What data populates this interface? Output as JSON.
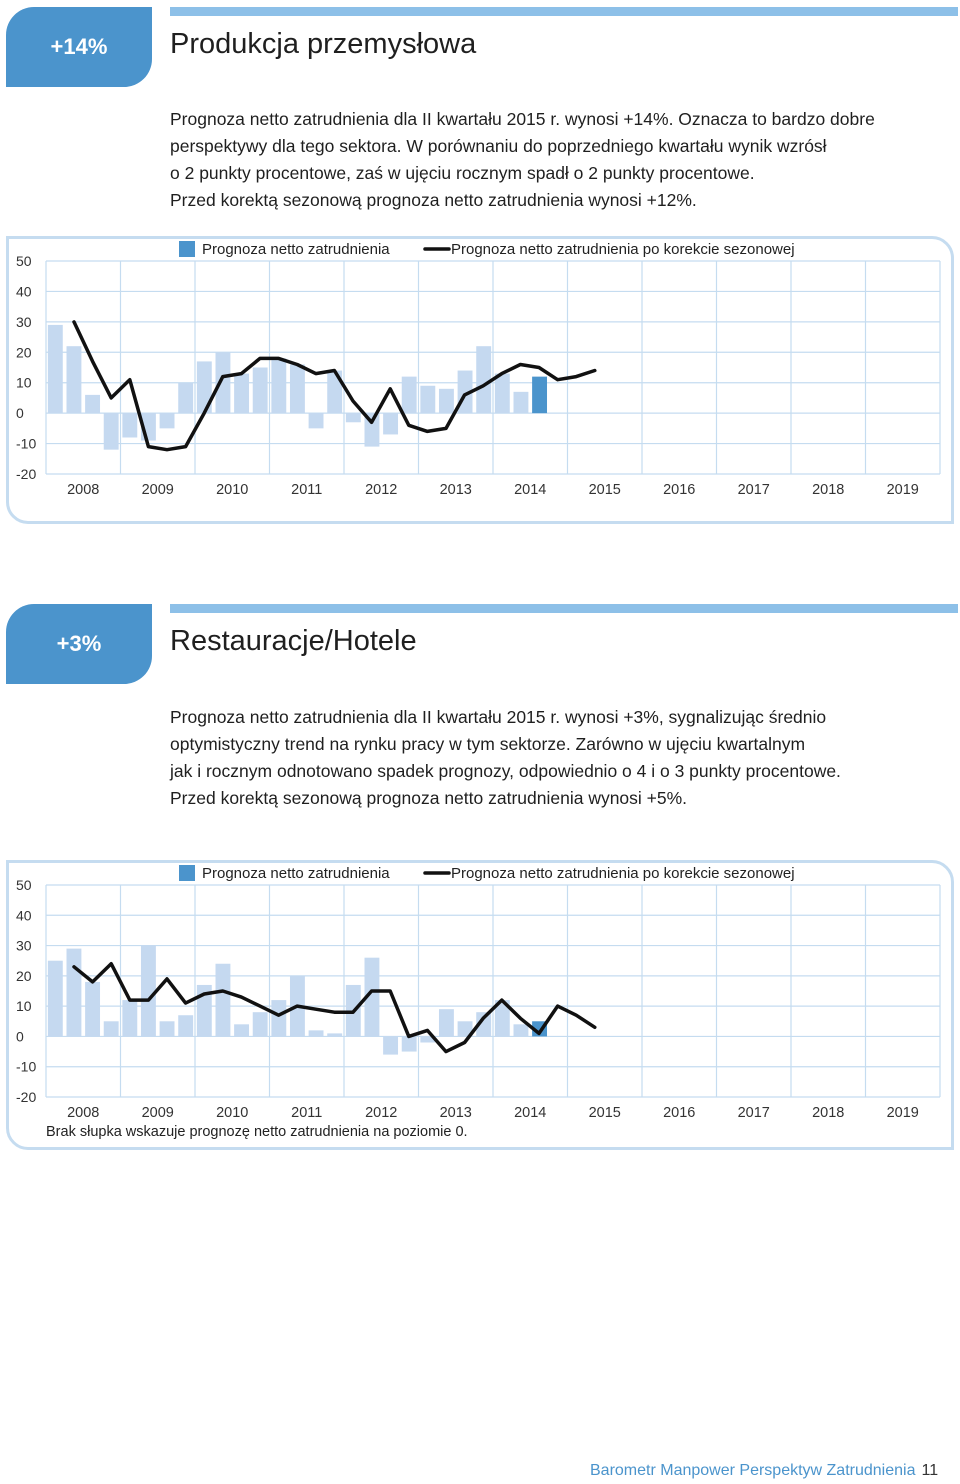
{
  "sections": [
    {
      "badge": "+14%",
      "title": "Produkcja przemysłowa",
      "description": [
        "Prognoza netto zatrudnienia dla II kwartału 2015 r. wynosi +14%. Oznacza to bardzo dobre",
        "perspektywy dla tego sektora. W porównaniu do poprzedniego kwartału wynik wzrósł",
        "o 2 punkty procentowe, zaś w ujęciu rocznym spadł o 2 punkty procentowe.",
        "Przed korektą sezonową prognoza netto zatrudnienia wynosi +12%."
      ],
      "note": ""
    },
    {
      "badge": "+3%",
      "title": "Restauracje/Hotele",
      "description": [
        "Prognoza netto zatrudnienia dla II kwartału 2015 r. wynosi +3%, sygnalizując średnio",
        "optymistyczny trend na rynku pracy w tym sektorze. Zarówno w ujęciu kwartalnym",
        "jak i rocznym odnotowano spadek prognozy, odpowiednio o 4 i o 3 punkty procentowe.",
        "Przed korektą sezonową prognoza netto zatrudnienia wynosi +5%."
      ],
      "note": "Brak słupka wskazuje prognozę netto zatrudnienia na poziomie 0."
    }
  ],
  "footer": {
    "text": "Barometr Manpower Perspektyw Zatrudnienia",
    "page": "11"
  },
  "chart_data": [
    {
      "type": "bar",
      "legend": [
        "Prognoza netto zatrudnienia",
        "Prognoza netto zatrudnienia po korekcie sezonowej"
      ],
      "years": [
        "2008",
        "2009",
        "2010",
        "2011",
        "2012",
        "2013",
        "2014",
        "2015",
        "2016",
        "2017",
        "2018",
        "2019"
      ],
      "yticks": [
        50,
        40,
        30,
        20,
        10,
        0,
        -10,
        -20
      ],
      "ylim": [
        -20,
        50
      ],
      "start_quarter": "2008 Q1",
      "bars": [
        29,
        22,
        6,
        -12,
        -8,
        -9,
        -5,
        10,
        17,
        20,
        13,
        15,
        18,
        16,
        -5,
        14,
        -3,
        -11,
        -7,
        12,
        9,
        8,
        14,
        22,
        13,
        7,
        12
      ],
      "line": [
        30,
        17,
        5,
        11,
        -11,
        -12,
        -11,
        0,
        12,
        13,
        18,
        18,
        16,
        13,
        14,
        4,
        -3,
        8,
        -4,
        -6,
        -5,
        6,
        9,
        13,
        16,
        15,
        11,
        12,
        14
      ],
      "colors": {
        "bar": "#c5d9f0",
        "bar_current": "#4b94cc",
        "line": "#111111"
      }
    },
    {
      "type": "bar",
      "legend": [
        "Prognoza netto zatrudnienia",
        "Prognoza netto zatrudnienia po korekcie sezonowej"
      ],
      "years": [
        "2008",
        "2009",
        "2010",
        "2011",
        "2012",
        "2013",
        "2014",
        "2015",
        "2016",
        "2017",
        "2018",
        "2019"
      ],
      "yticks": [
        50,
        40,
        30,
        20,
        10,
        0,
        -10,
        -20
      ],
      "ylim": [
        -20,
        50
      ],
      "start_quarter": "2008 Q1",
      "bars": [
        25,
        29,
        18,
        5,
        12,
        30,
        5,
        7,
        17,
        24,
        4,
        8,
        12,
        20,
        2,
        1,
        17,
        26,
        -6,
        -5,
        -2,
        9,
        5,
        8,
        12,
        4,
        5
      ],
      "line": [
        23,
        18,
        24,
        12,
        12,
        19,
        11,
        14,
        15,
        13,
        10,
        7,
        10,
        9,
        8,
        8,
        15,
        15,
        0,
        2,
        -5,
        -2,
        6,
        12,
        6,
        1,
        10,
        7,
        3
      ],
      "colors": {
        "bar": "#c5d9f0",
        "bar_current": "#4b94cc",
        "line": "#111111"
      }
    }
  ]
}
